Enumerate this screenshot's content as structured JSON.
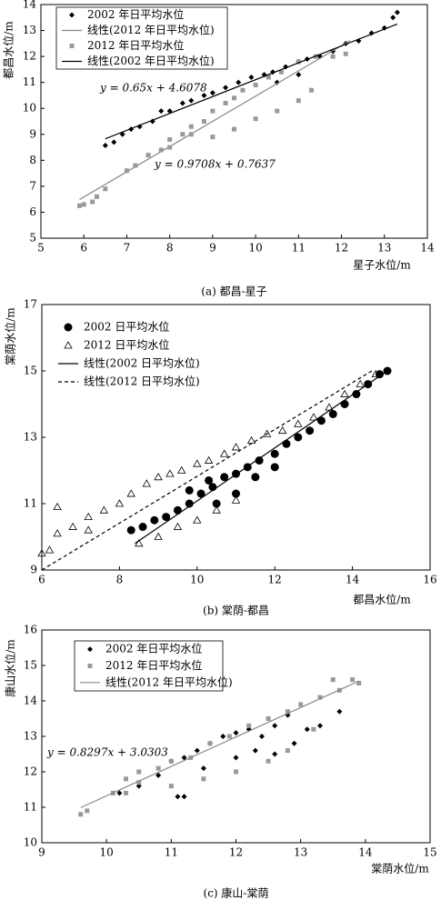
{
  "chart_data": [
    {
      "type": "scatter",
      "title": "(a) 都昌-星子",
      "xlabel": "星子水位/m",
      "ylabel": "都昌水位/m",
      "xlim": [
        5,
        14
      ],
      "ylim": [
        5,
        14
      ],
      "xticks": [
        5,
        6,
        7,
        8,
        9,
        10,
        11,
        12,
        13,
        14
      ],
      "yticks": [
        5,
        6,
        7,
        8,
        9,
        10,
        11,
        12,
        13,
        14
      ],
      "legend": "upper left",
      "legend_frame": true,
      "annotations": [
        "y = 0.65x + 4.6078",
        "y = 0.9708x + 0.7637"
      ],
      "series": [
        {
          "name": "2002 年日平均水位",
          "style": "marker",
          "marker": "diamond",
          "color": "#000000",
          "x": [
            6.5,
            6.7,
            6.9,
            7.1,
            7.3,
            7.6,
            7.8,
            8.0,
            8.3,
            8.5,
            8.8,
            9.0,
            9.3,
            9.6,
            9.9,
            10.2,
            10.4,
            10.7,
            11.0,
            11.2,
            11.5,
            11.8,
            12.1,
            12.4,
            12.7,
            13.0,
            13.3,
            13.2,
            11.0,
            10.5
          ],
          "values": [
            8.57,
            8.7,
            9.0,
            9.2,
            9.3,
            9.5,
            9.9,
            9.9,
            10.2,
            10.3,
            10.5,
            10.6,
            10.8,
            11.0,
            11.2,
            11.3,
            11.4,
            11.6,
            11.8,
            11.9,
            12.0,
            12.2,
            12.5,
            12.6,
            12.9,
            13.1,
            13.7,
            13.5,
            11.3,
            11.0
          ]
        },
        {
          "name": "线性(2012 年日平均水位)",
          "style": "line",
          "dash": false,
          "color": "#888888",
          "x": [
            5.9,
            12.2
          ],
          "values": [
            6.49,
            12.61
          ]
        },
        {
          "name": "2012 年日平均水位",
          "style": "marker",
          "marker": "square",
          "color": "#999999",
          "x": [
            5.9,
            6.0,
            6.2,
            6.3,
            6.5,
            7.0,
            7.2,
            7.5,
            7.8,
            8.0,
            8.3,
            8.5,
            8.8,
            9.0,
            9.3,
            9.5,
            9.7,
            10.0,
            10.3,
            10.6,
            11.0,
            11.4,
            11.8,
            12.1,
            9.0,
            9.5,
            10.0,
            10.5,
            11.0,
            11.3,
            8.5,
            8.0
          ],
          "values": [
            6.25,
            6.3,
            6.4,
            6.6,
            6.9,
            7.6,
            7.8,
            8.2,
            8.4,
            8.8,
            9.0,
            9.3,
            9.5,
            9.9,
            10.2,
            10.4,
            10.7,
            10.9,
            11.2,
            11.4,
            11.8,
            12.0,
            12.0,
            12.1,
            8.9,
            9.2,
            9.6,
            9.9,
            10.3,
            10.7,
            9.0,
            8.5
          ]
        },
        {
          "name": "线性(2002 年日平均水位)",
          "style": "line",
          "dash": false,
          "color": "#000000",
          "x": [
            6.5,
            13.3
          ],
          "values": [
            8.83,
            13.25
          ]
        }
      ]
    },
    {
      "type": "scatter",
      "title": "(b) 棠荫-都昌",
      "xlabel": "都昌水位/m",
      "ylabel": "棠荫水位/m",
      "xlim": [
        6,
        16
      ],
      "ylim": [
        9,
        17
      ],
      "xticks": [
        6,
        8,
        10,
        12,
        14,
        16
      ],
      "yticks": [
        9,
        11,
        13,
        15,
        17
      ],
      "legend": "upper left",
      "legend_frame": false,
      "annotations": [],
      "series": [
        {
          "name": "2002 日平均水位",
          "style": "marker",
          "marker": "circle",
          "color": "#000000",
          "x": [
            8.3,
            8.6,
            8.9,
            9.2,
            9.5,
            9.8,
            10.1,
            10.4,
            10.7,
            11.0,
            11.3,
            11.6,
            12.0,
            12.3,
            12.6,
            12.9,
            13.2,
            13.5,
            13.8,
            14.1,
            14.4,
            14.7,
            14.9,
            10.5,
            11.0,
            11.5,
            12.0,
            9.8,
            10.3
          ],
          "values": [
            10.2,
            10.3,
            10.5,
            10.6,
            10.8,
            11.0,
            11.3,
            11.5,
            11.8,
            11.9,
            12.1,
            12.3,
            12.5,
            12.8,
            13.0,
            13.2,
            13.5,
            13.7,
            14.0,
            14.3,
            14.6,
            14.9,
            15.0,
            11.0,
            11.3,
            11.8,
            12.1,
            11.4,
            11.7
          ]
        },
        {
          "name": "2012 日平均水位",
          "style": "marker",
          "marker": "triangle",
          "color": "#000000",
          "x": [
            6.0,
            6.2,
            6.4,
            6.8,
            7.2,
            7.6,
            8.0,
            8.3,
            8.7,
            9.0,
            9.3,
            9.6,
            10.0,
            10.3,
            10.7,
            11.0,
            11.4,
            11.8,
            12.2,
            12.6,
            13.0,
            13.4,
            13.8,
            14.2,
            14.6,
            8.5,
            9.0,
            9.5,
            10.0,
            10.5,
            11.0,
            6.4,
            7.2
          ],
          "values": [
            9.5,
            9.6,
            10.1,
            10.3,
            10.6,
            10.8,
            11.0,
            11.3,
            11.6,
            11.8,
            11.9,
            12.0,
            12.2,
            12.3,
            12.5,
            12.7,
            12.9,
            13.1,
            13.2,
            13.4,
            13.6,
            13.9,
            14.3,
            14.6,
            14.9,
            9.8,
            10.0,
            10.3,
            10.5,
            10.8,
            11.1,
            10.9,
            10.2
          ]
        },
        {
          "name": "线性(2002 日平均水位)",
          "style": "line",
          "dash": false,
          "color": "#000000",
          "x": [
            8.4,
            14.9
          ],
          "values": [
            9.8,
            15.0
          ]
        },
        {
          "name": "线性(2012 日平均水位)",
          "style": "line",
          "dash": true,
          "color": "#000000",
          "x": [
            6.0,
            14.5
          ],
          "values": [
            9.0,
            15.0
          ]
        }
      ]
    },
    {
      "type": "scatter",
      "title": "(c) 康山-棠荫",
      "xlabel": "棠荫水位/m",
      "ylabel": "康山水位/m",
      "xlim": [
        9,
        15
      ],
      "ylim": [
        10,
        16
      ],
      "xticks": [
        9,
        10,
        11,
        12,
        13,
        14,
        15
      ],
      "yticks": [
        10,
        11,
        12,
        13,
        14,
        15,
        16
      ],
      "legend": "upper left",
      "legend_frame": true,
      "annotations": [
        "y = 0.8297x + 3.0303"
      ],
      "series": [
        {
          "name": "2002 年日平均水位",
          "style": "marker",
          "marker": "diamond",
          "color": "#000000",
          "x": [
            10.2,
            10.5,
            10.8,
            11.0,
            11.2,
            11.4,
            11.6,
            11.8,
            12.0,
            12.2,
            12.4,
            12.6,
            12.0,
            12.3,
            12.6,
            12.9,
            13.1,
            13.3,
            13.6,
            11.2,
            11.1,
            11.5,
            12.8
          ],
          "values": [
            11.4,
            11.6,
            11.9,
            12.3,
            12.4,
            12.6,
            12.8,
            13.0,
            13.1,
            13.2,
            13.0,
            13.3,
            12.4,
            12.6,
            12.5,
            12.8,
            13.2,
            13.3,
            13.7,
            11.3,
            11.3,
            12.1,
            13.6
          ]
        },
        {
          "name": "2012 年日平均水位",
          "style": "marker",
          "marker": "square",
          "color": "#999999",
          "x": [
            9.6,
            9.7,
            10.1,
            10.3,
            10.5,
            10.8,
            11.0,
            11.3,
            11.6,
            11.9,
            12.2,
            12.5,
            12.8,
            13.0,
            13.3,
            13.6,
            13.8,
            13.9,
            13.5,
            11.0,
            11.5,
            12.0,
            12.5,
            12.8,
            13.2,
            10.3,
            10.5
          ],
          "values": [
            10.8,
            10.9,
            11.4,
            11.8,
            12.0,
            12.1,
            12.3,
            12.4,
            12.8,
            13.0,
            13.3,
            13.5,
            13.7,
            13.9,
            14.1,
            14.3,
            14.6,
            14.5,
            14.6,
            11.6,
            11.8,
            12.0,
            12.3,
            12.6,
            13.2,
            11.4,
            11.7
          ]
        },
        {
          "name": "线性(2012 年日平均水位)",
          "style": "line",
          "dash": false,
          "color": "#888888",
          "x": [
            9.6,
            13.9
          ],
          "values": [
            10.99,
            14.56
          ]
        }
      ]
    }
  ]
}
